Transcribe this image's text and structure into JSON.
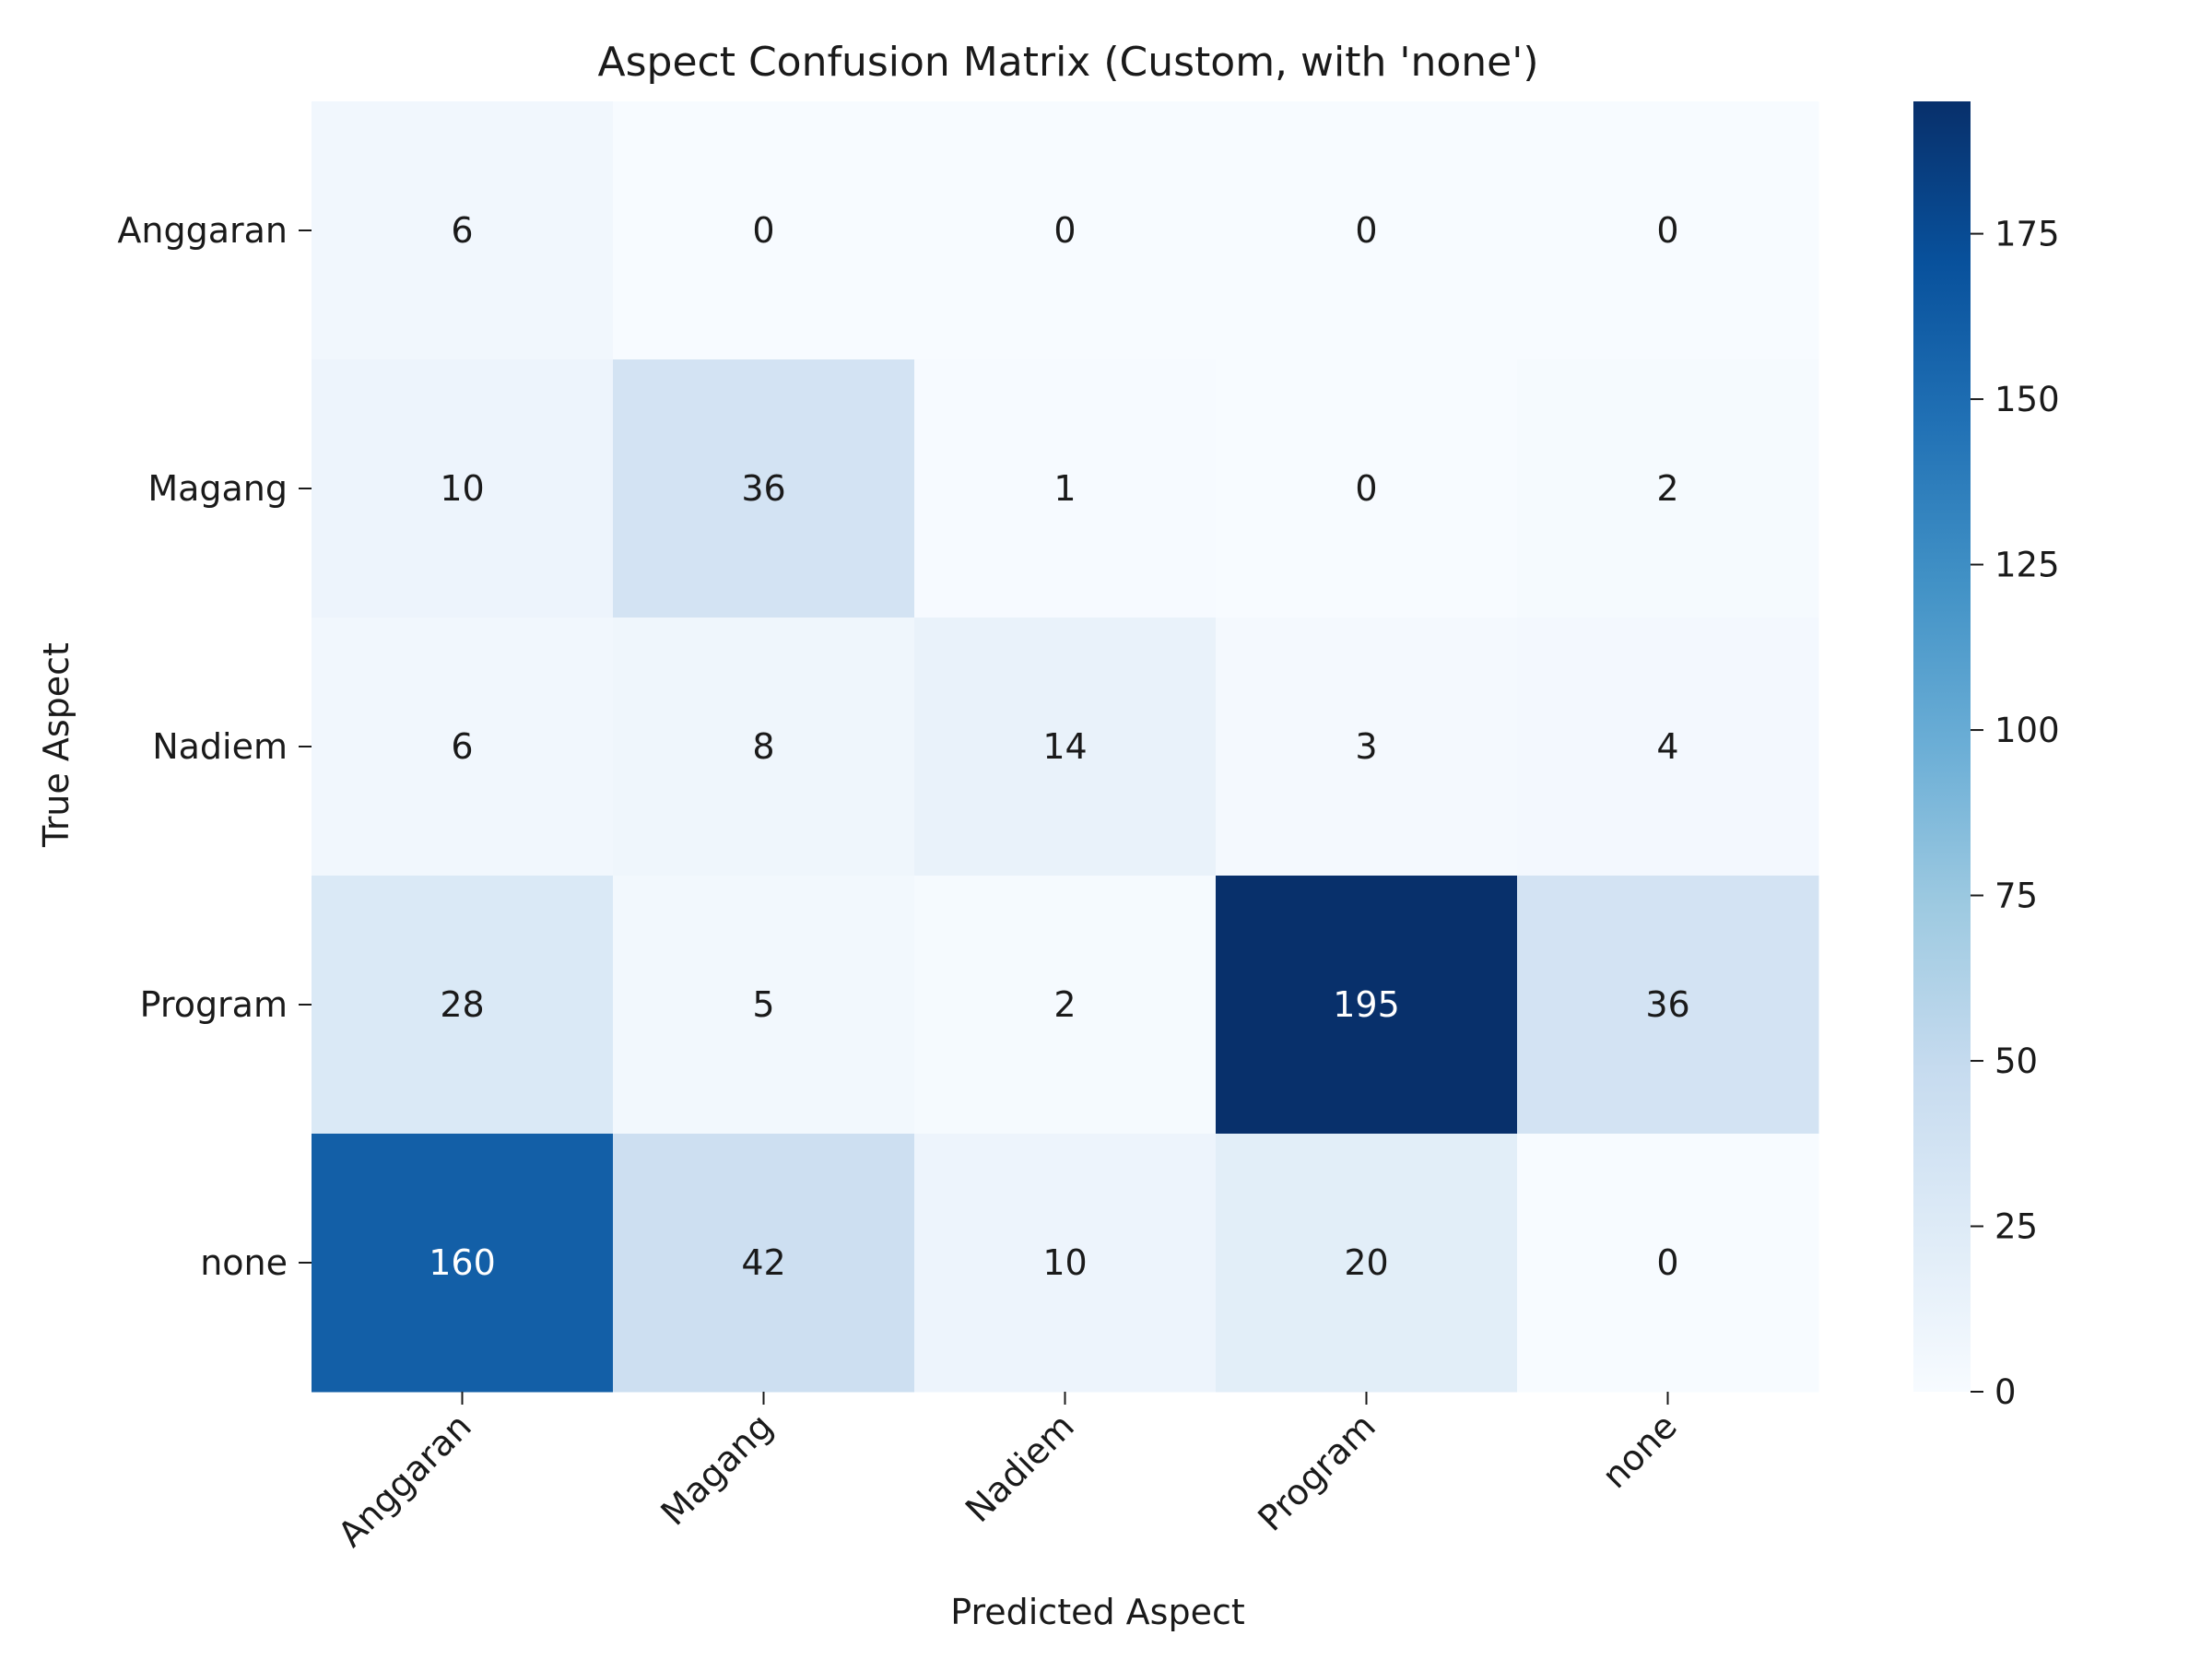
{
  "chart_data": {
    "type": "heatmap",
    "title": "Aspect Confusion Matrix (Custom, with 'none')",
    "xlabel": "Predicted Aspect",
    "ylabel": "True Aspect",
    "x_categories": [
      "Anggaran",
      "Magang",
      "Nadiem",
      "Program",
      "none"
    ],
    "y_categories": [
      "Anggaran",
      "Magang",
      "Nadiem",
      "Program",
      "none"
    ],
    "values": [
      [
        6,
        0,
        0,
        0,
        0
      ],
      [
        10,
        36,
        1,
        0,
        2
      ],
      [
        6,
        8,
        14,
        3,
        4
      ],
      [
        28,
        5,
        2,
        195,
        36
      ],
      [
        160,
        42,
        10,
        20,
        0
      ]
    ],
    "colorscale": "Blues",
    "colorbar": {
      "range": [
        0,
        195
      ],
      "ticks": [
        "0",
        "25",
        "50",
        "75",
        "100",
        "125",
        "150",
        "175"
      ]
    },
    "grid": false,
    "legend": "colorbar-right"
  }
}
